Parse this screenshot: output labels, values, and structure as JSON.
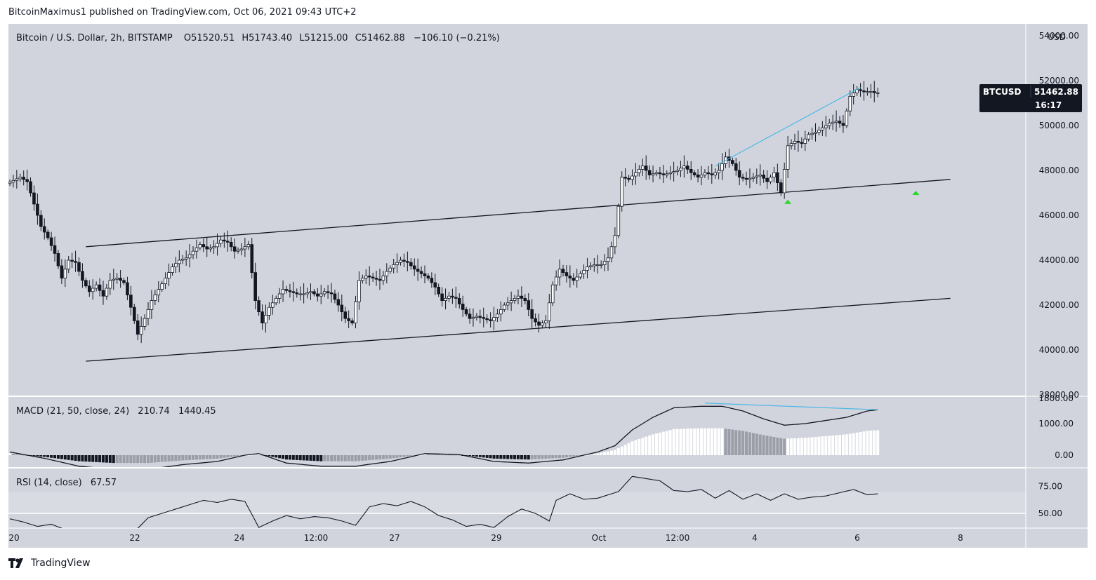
{
  "header": {
    "byline": "BitcoinMaximus1 published on TradingView.com, Oct 06, 2021 09:43 UTC+2"
  },
  "legend": {
    "title": "Bitcoin / U.S. Dollar, 2h, BITSTAMP",
    "o_label": "O",
    "o_value": "51520.51",
    "h_label": "H",
    "h_value": "51743.40",
    "l_label": "L",
    "l_value": "51215.00",
    "c_label": "C",
    "c_value": "51462.88",
    "change": "−106.10 (−0.21%)"
  },
  "price_tag": {
    "symbol": "BTCUSD",
    "value": "51462.88",
    "countdown": "16:17"
  },
  "macd_legend": {
    "title": "MACD (21, 50, close, 24)",
    "v1": "210.74",
    "v2": "1440.45"
  },
  "rsi_legend": {
    "title": "RSI (14, close)",
    "value": "67.57"
  },
  "footer": {
    "brand": "TradingView"
  },
  "colors": {
    "background": "#d1d4dc",
    "band": "#d9dbe2",
    "trend_blue": "#4db8e8",
    "arrow_green": "#26d926",
    "candle_up": "#ffffff",
    "candle_down": "#131722",
    "hist_light": "#ffffff",
    "hist_gray": "#9b9ea6"
  },
  "chart_data": {
    "type": "candlestick",
    "symbol": "BTCUSD",
    "currency": "USD",
    "x_ticks": [
      "20",
      "22",
      "24",
      "12:00",
      "27",
      "29",
      "Oct",
      "12:00",
      "4",
      "6",
      "8"
    ],
    "price_axis": {
      "unit": "USD",
      "ticks": [
        38000,
        40000,
        42000,
        44000,
        46000,
        48000,
        50000,
        52000,
        54000
      ],
      "range": [
        38000,
        54000
      ]
    },
    "last_price": 51462.88,
    "price_anchors": [
      [
        0,
        47400
      ],
      [
        4,
        47700
      ],
      [
        6,
        47500
      ],
      [
        8,
        46500
      ],
      [
        10,
        45500
      ],
      [
        12,
        45000
      ],
      [
        14,
        44300
      ],
      [
        16,
        43200
      ],
      [
        18,
        44000
      ],
      [
        20,
        43900
      ],
      [
        22,
        43100
      ],
      [
        24,
        42600
      ],
      [
        26,
        42900
      ],
      [
        28,
        42400
      ],
      [
        30,
        43100
      ],
      [
        32,
        43200
      ],
      [
        34,
        43000
      ],
      [
        36,
        41900
      ],
      [
        38,
        40700
      ],
      [
        40,
        41400
      ],
      [
        42,
        42200
      ],
      [
        44,
        42700
      ],
      [
        46,
        43200
      ],
      [
        48,
        43700
      ],
      [
        50,
        44000
      ],
      [
        52,
        44100
      ],
      [
        54,
        44400
      ],
      [
        56,
        44700
      ],
      [
        58,
        44500
      ],
      [
        60,
        44600
      ],
      [
        62,
        44900
      ],
      [
        64,
        44800
      ],
      [
        66,
        44400
      ],
      [
        68,
        44500
      ],
      [
        70,
        44700
      ],
      [
        72,
        42200
      ],
      [
        74,
        41200
      ],
      [
        76,
        41900
      ],
      [
        78,
        42300
      ],
      [
        80,
        42700
      ],
      [
        82,
        42600
      ],
      [
        84,
        42500
      ],
      [
        86,
        42500
      ],
      [
        88,
        42600
      ],
      [
        90,
        42400
      ],
      [
        92,
        42600
      ],
      [
        94,
        42500
      ],
      [
        96,
        42000
      ],
      [
        98,
        41400
      ],
      [
        100,
        41200
      ],
      [
        102,
        43100
      ],
      [
        104,
        43300
      ],
      [
        106,
        43200
      ],
      [
        108,
        43100
      ],
      [
        110,
        43500
      ],
      [
        112,
        43800
      ],
      [
        114,
        44000
      ],
      [
        116,
        43900
      ],
      [
        118,
        43600
      ],
      [
        120,
        43400
      ],
      [
        122,
        43200
      ],
      [
        124,
        42800
      ],
      [
        126,
        42200
      ],
      [
        128,
        42400
      ],
      [
        130,
        42300
      ],
      [
        132,
        41800
      ],
      [
        134,
        41400
      ],
      [
        136,
        41500
      ],
      [
        138,
        41400
      ],
      [
        140,
        41300
      ],
      [
        142,
        41600
      ],
      [
        144,
        42000
      ],
      [
        146,
        42200
      ],
      [
        148,
        42400
      ],
      [
        150,
        42200
      ],
      [
        152,
        41400
      ],
      [
        154,
        41100
      ],
      [
        156,
        41300
      ],
      [
        158,
        42900
      ],
      [
        160,
        43600
      ],
      [
        162,
        43300
      ],
      [
        164,
        43100
      ],
      [
        166,
        43400
      ],
      [
        168,
        43700
      ],
      [
        170,
        43800
      ],
      [
        172,
        43800
      ],
      [
        174,
        44100
      ],
      [
        176,
        45100
      ],
      [
        178,
        47700
      ],
      [
        180,
        47600
      ],
      [
        182,
        47900
      ],
      [
        184,
        48200
      ],
      [
        186,
        47800
      ],
      [
        188,
        47900
      ],
      [
        190,
        47800
      ],
      [
        192,
        47900
      ],
      [
        194,
        48000
      ],
      [
        196,
        48200
      ],
      [
        198,
        47900
      ],
      [
        200,
        47700
      ],
      [
        202,
        47900
      ],
      [
        204,
        47800
      ],
      [
        206,
        48000
      ],
      [
        208,
        48600
      ],
      [
        210,
        48300
      ],
      [
        212,
        47700
      ],
      [
        214,
        47600
      ],
      [
        216,
        47700
      ],
      [
        218,
        47800
      ],
      [
        220,
        47500
      ],
      [
        222,
        47900
      ],
      [
        224,
        47000
      ],
      [
        226,
        49100
      ],
      [
        228,
        49300
      ],
      [
        230,
        49200
      ],
      [
        232,
        49600
      ],
      [
        234,
        49700
      ],
      [
        236,
        49900
      ],
      [
        238,
        50100
      ],
      [
        240,
        50200
      ],
      [
        242,
        50000
      ],
      [
        244,
        51300
      ],
      [
        246,
        51600
      ],
      [
        248,
        51500
      ],
      [
        250,
        51520
      ],
      [
        251,
        51462
      ]
    ],
    "channel": {
      "upper": {
        "from": [
          22,
          44600
        ],
        "to": [
          272,
          47600
        ]
      },
      "lower": {
        "from": [
          22,
          39500
        ],
        "to": [
          272,
          42300
        ]
      }
    },
    "trendline_blue": {
      "from": [
        204,
        48200
      ],
      "to": [
        246,
        51700
      ]
    },
    "green_markers": [
      {
        "bar": 225,
        "price": 46600
      },
      {
        "bar": 262,
        "price": 47000
      }
    ],
    "macd": {
      "params": "21, 50, close, 24",
      "values": [
        210.74,
        1440.45
      ],
      "axis_ticks": [
        0.0,
        1000.0,
        1800.0
      ],
      "anchors": [
        [
          0,
          100
        ],
        [
          10,
          -100
        ],
        [
          20,
          -350
        ],
        [
          30,
          -450
        ],
        [
          40,
          -450
        ],
        [
          50,
          -300
        ],
        [
          60,
          -200
        ],
        [
          68,
          0
        ],
        [
          72,
          50
        ],
        [
          80,
          -250
        ],
        [
          90,
          -350
        ],
        [
          100,
          -350
        ],
        [
          110,
          -200
        ],
        [
          120,
          50
        ],
        [
          130,
          20
        ],
        [
          140,
          -200
        ],
        [
          150,
          -250
        ],
        [
          160,
          -150
        ],
        [
          170,
          100
        ],
        [
          175,
          300
        ],
        [
          180,
          800
        ],
        [
          186,
          1200
        ],
        [
          192,
          1500
        ],
        [
          200,
          1550
        ],
        [
          206,
          1550
        ],
        [
          212,
          1400
        ],
        [
          218,
          1150
        ],
        [
          224,
          950
        ],
        [
          230,
          1000
        ],
        [
          236,
          1100
        ],
        [
          242,
          1200
        ],
        [
          248,
          1400
        ],
        [
          251,
          1440
        ]
      ],
      "divergence_line": {
        "from": [
          201,
          1650
        ],
        "to": [
          251,
          1440
        ]
      }
    },
    "rsi": {
      "params": "14, close",
      "value": 67.57,
      "axis_ticks": [
        50.0,
        75.0
      ],
      "band": [
        50,
        70
      ],
      "anchors": [
        [
          0,
          45
        ],
        [
          4,
          42
        ],
        [
          8,
          38
        ],
        [
          12,
          40
        ],
        [
          16,
          35
        ],
        [
          20,
          33
        ],
        [
          24,
          35
        ],
        [
          28,
          30
        ],
        [
          32,
          34
        ],
        [
          36,
          33
        ],
        [
          40,
          46
        ],
        [
          44,
          50
        ],
        [
          48,
          54
        ],
        [
          52,
          58
        ],
        [
          56,
          62
        ],
        [
          60,
          60
        ],
        [
          64,
          63
        ],
        [
          68,
          61
        ],
        [
          72,
          37
        ],
        [
          76,
          43
        ],
        [
          80,
          48
        ],
        [
          84,
          45
        ],
        [
          88,
          47
        ],
        [
          92,
          46
        ],
        [
          96,
          43
        ],
        [
          100,
          39
        ],
        [
          104,
          56
        ],
        [
          108,
          59
        ],
        [
          112,
          57
        ],
        [
          116,
          61
        ],
        [
          120,
          56
        ],
        [
          124,
          48
        ],
        [
          128,
          44
        ],
        [
          132,
          38
        ],
        [
          136,
          40
        ],
        [
          140,
          37
        ],
        [
          144,
          47
        ],
        [
          148,
          54
        ],
        [
          152,
          50
        ],
        [
          156,
          43
        ],
        [
          158,
          62
        ],
        [
          162,
          68
        ],
        [
          166,
          63
        ],
        [
          170,
          64
        ],
        [
          176,
          70
        ],
        [
          180,
          84
        ],
        [
          184,
          82
        ],
        [
          188,
          80
        ],
        [
          192,
          71
        ],
        [
          196,
          70
        ],
        [
          200,
          72
        ],
        [
          204,
          64
        ],
        [
          208,
          71
        ],
        [
          212,
          63
        ],
        [
          216,
          68
        ],
        [
          220,
          62
        ],
        [
          224,
          68
        ],
        [
          228,
          63
        ],
        [
          232,
          65
        ],
        [
          236,
          66
        ],
        [
          240,
          69
        ],
        [
          244,
          72
        ],
        [
          248,
          67
        ],
        [
          251,
          68
        ]
      ]
    }
  }
}
